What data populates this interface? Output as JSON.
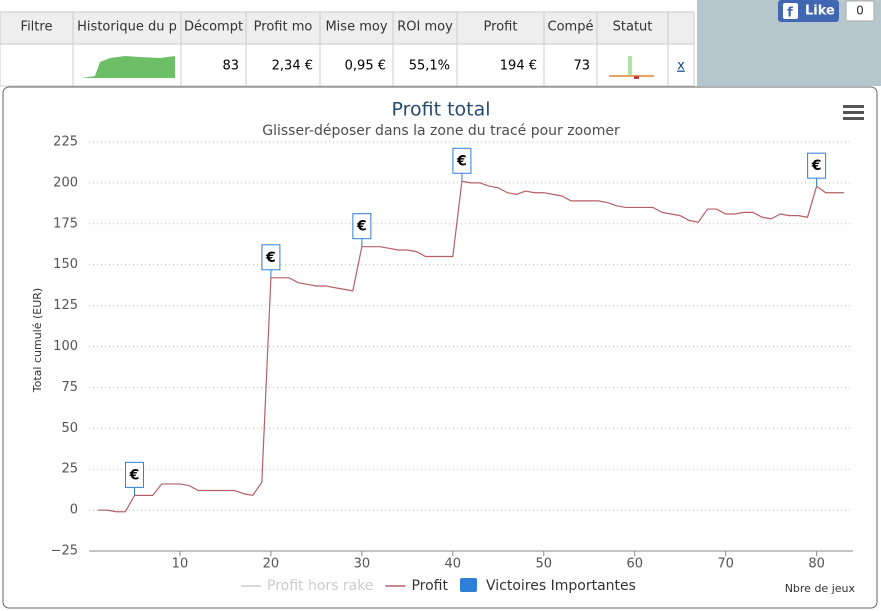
{
  "table": {
    "headers": [
      "Filtre",
      "Historique du p",
      "Décompt",
      "Profit mo",
      "Mise moy",
      "ROI moy",
      "Profit",
      "Compé",
      "Statut"
    ],
    "row": [
      "83",
      "2,34 €",
      "0,95 €",
      "55,1%",
      "194 €",
      "73"
    ],
    "link": "x"
  },
  "facebook": {
    "button": "Like",
    "count": "0"
  },
  "chart_data": {
    "type": "line",
    "title": "Profit total",
    "subtitle": "Glisser-déposer dans la zone du tracé pour zoomer",
    "y_label": "Total cumulé (EUR)",
    "x_label": "Nbre de jeux",
    "x": [
      1,
      2,
      3,
      4,
      5,
      6,
      7,
      8,
      9,
      10,
      11,
      12,
      13,
      14,
      15,
      16,
      17,
      18,
      19,
      20,
      21,
      22,
      23,
      24,
      25,
      26,
      27,
      28,
      29,
      30,
      31,
      32,
      33,
      34,
      35,
      36,
      37,
      38,
      39,
      40,
      41,
      42,
      43,
      44,
      45,
      46,
      47,
      48,
      49,
      50,
      51,
      52,
      53,
      54,
      55,
      56,
      57,
      58,
      59,
      60,
      61,
      62,
      63,
      64,
      65,
      66,
      67,
      68,
      69,
      70,
      71,
      72,
      73,
      74,
      75,
      76,
      77,
      78,
      79,
      80,
      81,
      82,
      83
    ],
    "series": [
      {
        "name": "Profit hors rake",
        "color": "#cccccc",
        "visible": false
      },
      {
        "name": "Profit",
        "color": "#b5606a",
        "values": [
          0,
          0,
          -1,
          -1,
          9,
          9,
          9,
          16,
          16,
          16,
          15,
          12,
          12,
          12,
          12,
          12,
          10,
          9,
          17,
          142,
          142,
          142,
          139,
          138,
          137,
          137,
          136,
          135,
          134,
          161,
          161,
          161,
          160,
          159,
          159,
          158,
          155,
          155,
          155,
          155,
          201,
          200,
          200,
          198,
          197,
          194,
          193,
          195,
          194,
          194,
          193,
          192,
          189,
          189,
          189,
          189,
          188,
          186,
          185,
          185,
          185,
          185,
          182,
          181,
          180,
          177,
          176,
          184,
          184,
          181,
          181,
          182,
          182,
          179,
          178,
          181,
          180,
          180,
          179,
          198,
          194,
          194,
          194
        ]
      },
      {
        "name": "Victoires Importantes",
        "color": "#2f7ed8",
        "x": [
          5,
          20,
          30,
          41,
          80
        ],
        "labels": [
          "€",
          "€",
          "€",
          "€",
          "€"
        ]
      }
    ],
    "xlim": [
      0,
      84
    ],
    "xticks": [
      10,
      20,
      30,
      40,
      50,
      60,
      70,
      80
    ],
    "ylim": [
      -25,
      225
    ],
    "yticks": [
      {
        "value": -25,
        "label": "−25"
      },
      0,
      25,
      50,
      75,
      100,
      125,
      150,
      175,
      200,
      225
    ],
    "grid": true
  }
}
